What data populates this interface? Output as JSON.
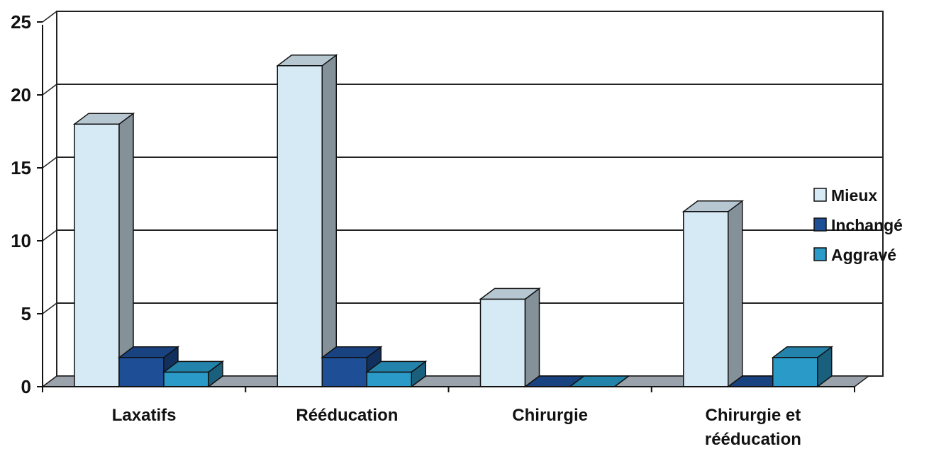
{
  "chart_data": {
    "type": "bar",
    "categories": [
      "Laxatifs",
      "Rééducation",
      "Chirurgie",
      "Chirurgie et rééducation"
    ],
    "series": [
      {
        "name": "Mieux",
        "values": [
          18,
          22,
          6,
          12
        ],
        "color": "#d6eaf6"
      },
      {
        "name": "Inchangé",
        "values": [
          2,
          2,
          0,
          0
        ],
        "color": "#1d4e96"
      },
      {
        "name": "Aggravé",
        "values": [
          1,
          1,
          0,
          2
        ],
        "color": "#2a9ac8"
      }
    ],
    "yticks": [
      0,
      5,
      10,
      15,
      20,
      25
    ],
    "ylim": [
      0,
      25
    ],
    "grid": true,
    "legend_position": "right",
    "style": "3d-column"
  }
}
